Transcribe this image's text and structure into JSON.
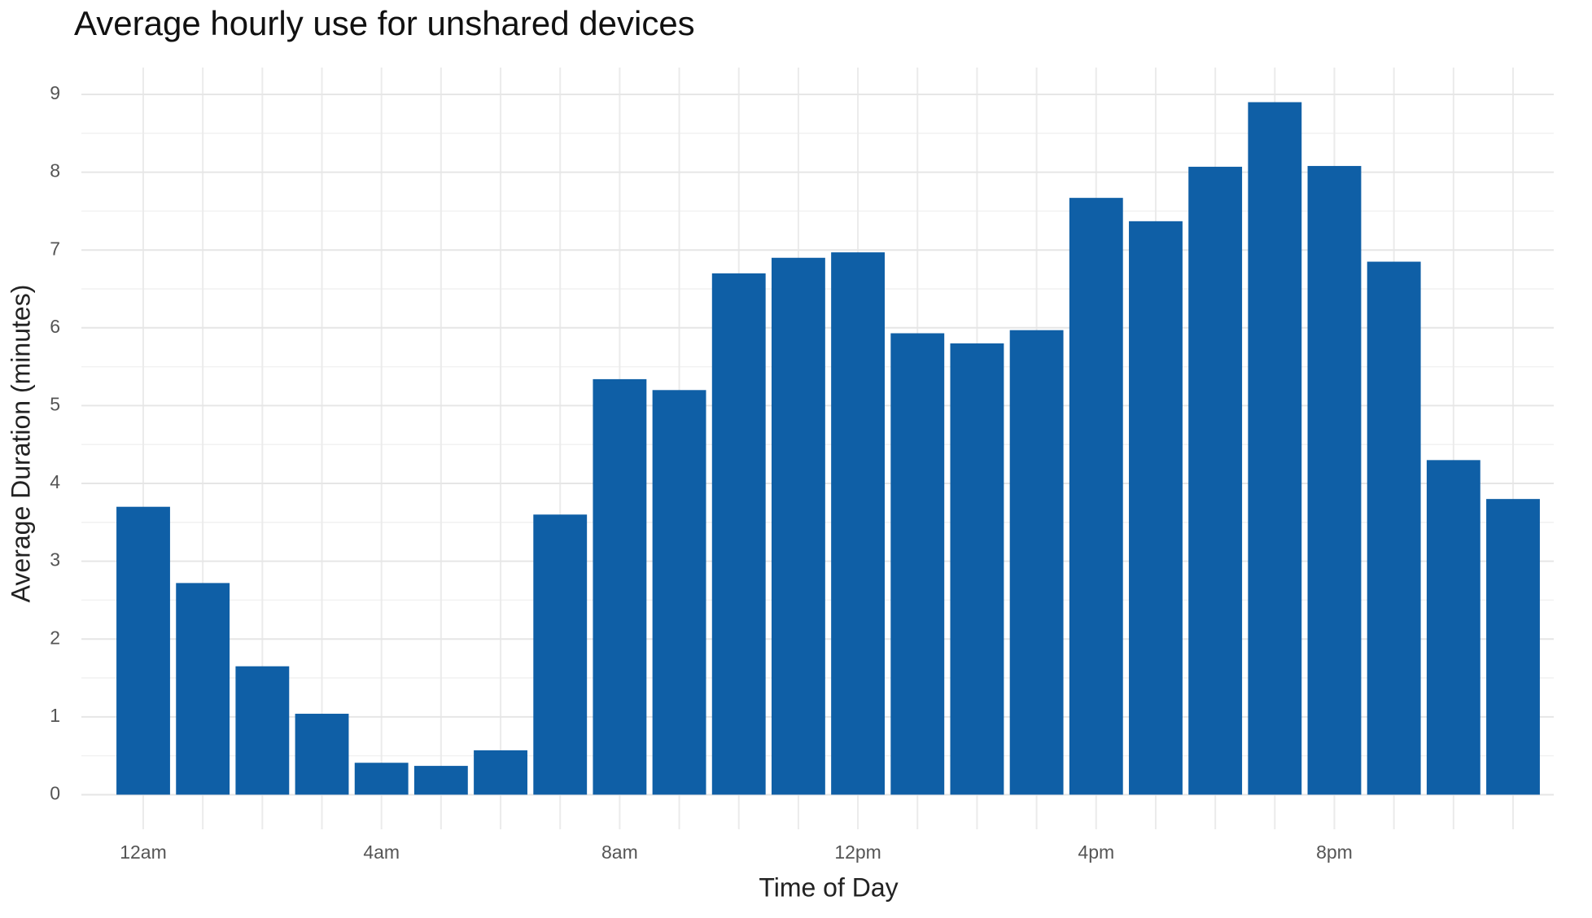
{
  "chart_data": {
    "type": "bar",
    "title": "Average hourly use for unshared devices",
    "x_label": "Time of Day",
    "y_label": "Average Duration (minutes)",
    "categories": [
      "12am",
      null,
      null,
      null,
      "4am",
      null,
      null,
      null,
      "8am",
      null,
      null,
      null,
      "12pm",
      null,
      null,
      null,
      "4pm",
      null,
      null,
      null,
      "8pm",
      null,
      null,
      null
    ],
    "values": [
      3.7,
      2.72,
      1.65,
      1.04,
      0.41,
      0.37,
      0.57,
      3.6,
      5.34,
      5.2,
      6.7,
      6.9,
      6.97,
      5.93,
      5.8,
      5.97,
      7.67,
      7.37,
      8.07,
      8.9,
      8.08,
      6.85,
      4.3,
      3.8
    ],
    "color": "#0f5fa6",
    "ylim": [
      -0.445,
      9.345
    ],
    "yticks": [
      0,
      1,
      2,
      3,
      4,
      5,
      6,
      7,
      8,
      9
    ],
    "grid": true
  }
}
